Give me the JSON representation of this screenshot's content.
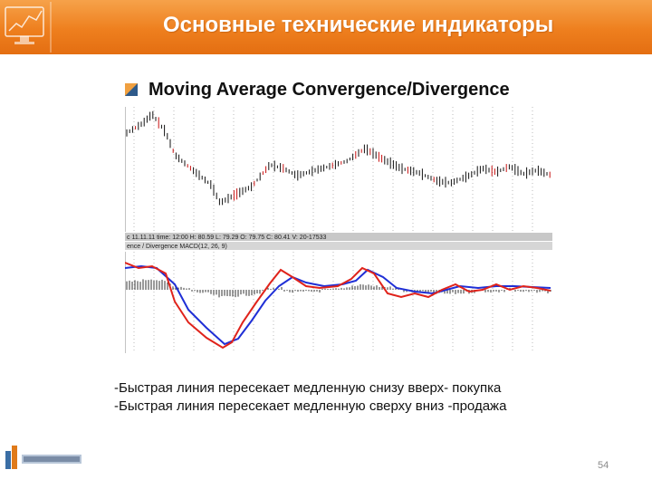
{
  "slide": {
    "title": "Основные технические индикаторы",
    "bullet": "Moving Average Convergence/Divergence",
    "rules": [
      "-Быстрая линия пересекает медленную  снизу вверх- покупка",
      "-Быстрая линия пересекает медленную сверху вниз -продажа"
    ],
    "page_number": "54"
  },
  "chart": {
    "info_bar": "c 11.11.11 time: 12:00 H: 80.59 L: 79.29 O: 79.75 C: 80.41 V: 20-17533",
    "macd_label": "ence / Divergence MACD(12, 26, 9)"
  },
  "colors": {
    "header_orange": "#ee7f1e",
    "fast_line": "#e0231b",
    "slow_line": "#1f2fd6",
    "price_bars": "#111111"
  },
  "icons": {
    "header_logo": "monitor-chart-icon",
    "bullet": "square-bullet-icon",
    "footer_logo": "company-logo-icon"
  }
}
